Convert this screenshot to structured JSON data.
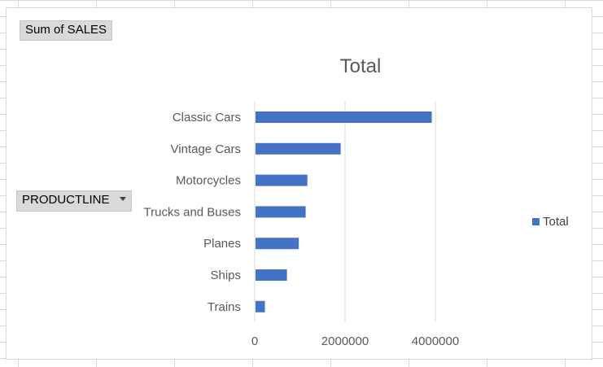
{
  "pivot": {
    "values_field": "Sum of SALES",
    "axis_field": "PRODUCTLINE"
  },
  "colors": {
    "bar": "#4472c4",
    "gridline": "#d9d9d9",
    "text": "#595959"
  },
  "chart_data": {
    "type": "bar",
    "orientation": "horizontal",
    "title": "Total",
    "categories": [
      "Classic Cars",
      "Vintage Cars",
      "Motorcycles",
      "Trucks and Buses",
      "Planes",
      "Ships",
      "Trains"
    ],
    "series": [
      {
        "name": "Total",
        "values": [
          3920000,
          1904000,
          1166000,
          1128000,
          976000,
          714000,
          226000
        ]
      }
    ],
    "xlim": [
      0,
      4000000
    ],
    "xticks": [
      0,
      2000000,
      4000000
    ],
    "grid": true,
    "legend_position": "right"
  }
}
